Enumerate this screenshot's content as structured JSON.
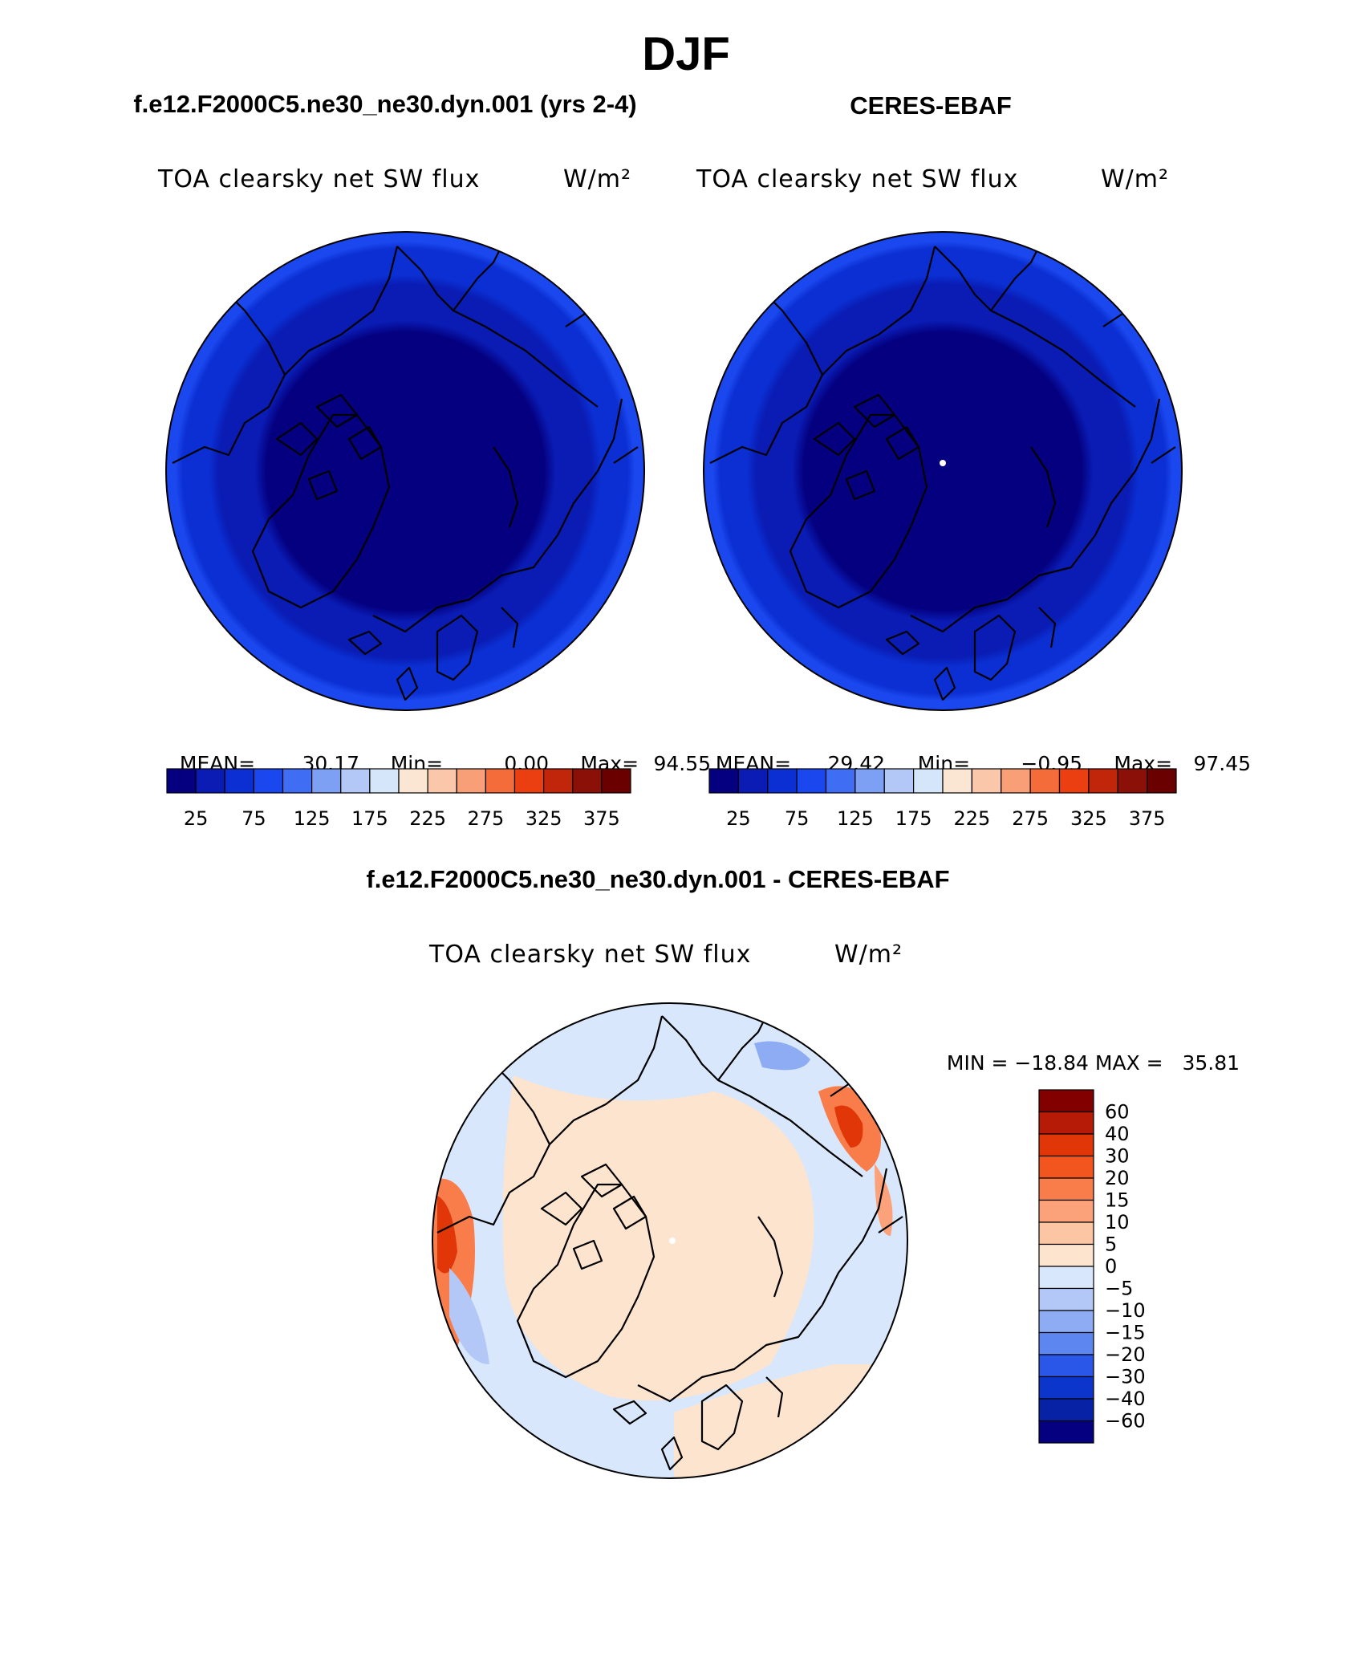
{
  "page_title": "DJF",
  "panels": {
    "model": {
      "title": "f.e12.F2000C5.ne30_ne30.dyn.001 (yrs 2-4)",
      "variable": "TOA clearsky net SW flux",
      "units": "W/m²",
      "stats": {
        "mean_label": "MEAN=",
        "mean": "30.17",
        "min_label": "Min=",
        "min": "0.00",
        "max_label": "Max=",
        "max": "94.55"
      }
    },
    "obs": {
      "title": "CERES-EBAF",
      "variable": "TOA clearsky net SW flux",
      "units": "W/m²",
      "stats": {
        "mean_label": "MEAN=",
        "mean": "29.42",
        "min_label": "Min=",
        "min": "−0.95",
        "max_label": "Max=",
        "max": "97.45"
      }
    },
    "diff": {
      "title": "f.e12.F2000C5.ne30_ne30.dyn.001 - CERES-EBAF",
      "variable": "TOA clearsky net SW flux",
      "units": "W/m²",
      "stats": {
        "min_label": "MIN =",
        "min": "−18.84",
        "max_label": "MAX =",
        "max": "35.81"
      }
    }
  },
  "colorbars": {
    "abs_labels": [
      "25",
      "75",
      "125",
      "175",
      "225",
      "275",
      "325",
      "375"
    ],
    "abs_colors": [
      "#04007f",
      "#0a1cb4",
      "#0b2fd2",
      "#1a47ee",
      "#3f6ef4",
      "#7ea0f4",
      "#b3c8f6",
      "#d6e6fa",
      "#fbe6d4",
      "#fbc7aa",
      "#f99f78",
      "#f46c3a",
      "#eb3f12",
      "#c2260a",
      "#8b1108",
      "#6a0000"
    ],
    "diff_labels": [
      "60",
      "40",
      "30",
      "20",
      "15",
      "10",
      "5",
      "0",
      "−5",
      "−10",
      "−15",
      "−20",
      "−30",
      "−40",
      "−60"
    ],
    "diff_colors": [
      "#820000",
      "#b51b06",
      "#e03608",
      "#f2561e",
      "#f97d4b",
      "#fba27a",
      "#fcc5a3",
      "#fde4cf",
      "#d8e7fb",
      "#b3c8f6",
      "#8dacf3",
      "#5d86f0",
      "#2a57e8",
      "#0c35cc",
      "#0822a5",
      "#04007f"
    ]
  }
}
